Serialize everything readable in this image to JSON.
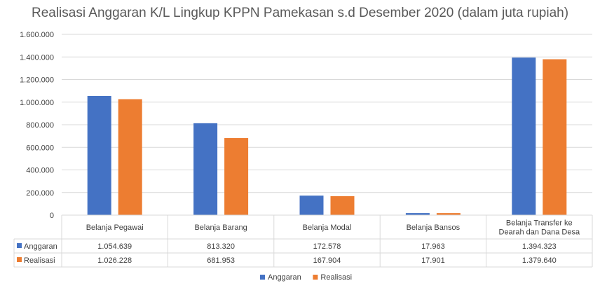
{
  "chart_data": {
    "type": "bar",
    "title": "Realisasi Anggaran K/L Lingkup KPPN Pamekasan s.d Desember 2020 (dalam juta rupiah)",
    "categories": [
      "Belanja Pegawai",
      "Belanja Barang",
      "Belanja Modal",
      "Belanja Bansos",
      "Belanja Transfer ke Dearah dan Dana Desa"
    ],
    "series": [
      {
        "name": "Anggaran",
        "values": [
          1054639,
          813320,
          172578,
          17963,
          1394323
        ],
        "color": "#4472C4",
        "labels": [
          "1.054.639",
          "813.320",
          "172.578",
          "17.963",
          "1.394.323"
        ]
      },
      {
        "name": "Realisasi",
        "values": [
          1026228,
          681953,
          167904,
          17901,
          1379640
        ],
        "color": "#ED7D31",
        "labels": [
          "1.026.228",
          "681.953",
          "167.904",
          "17.901",
          "1.379.640"
        ]
      }
    ],
    "ylim": [
      0,
      1600000
    ],
    "yticks": [
      "0",
      "200.000",
      "400.000",
      "600.000",
      "800.000",
      "1.000.000",
      "1.200.000",
      "1.400.000",
      "1.600.000"
    ],
    "grid": true,
    "legend": "bottom",
    "data_table": true
  }
}
